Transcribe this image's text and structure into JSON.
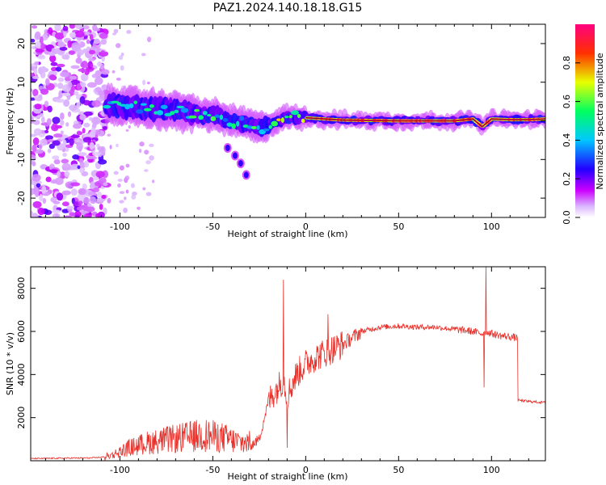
{
  "title": "PAZ1.2024.140.18.18.G15",
  "chart_data": [
    {
      "type": "heatmap",
      "xlabel": "Height of straight line (km)",
      "ylabel": "Frequency (Hz)",
      "xlim": [
        -148,
        129
      ],
      "ylim": [
        -25,
        25
      ],
      "xticks": [
        -100,
        -50,
        0,
        50,
        100
      ],
      "yticks": [
        -20,
        -10,
        0,
        10,
        20
      ],
      "colorbar": {
        "label": "Normalized spectral amplitude",
        "range": [
          0.0,
          1.0
        ],
        "ticks": [
          "0.0",
          "0.2",
          "0.4",
          "0.6",
          "0.8"
        ],
        "colormap": [
          "#ffffff",
          "#cc00ff",
          "#2200ff",
          "#00c8ff",
          "#00ff60",
          "#e8ff00",
          "#ff3000",
          "#ff0080"
        ]
      },
      "ridge": {
        "x": [
          -107,
          -100,
          -90,
          -80,
          -70,
          -60,
          -50,
          -40,
          -30,
          -25,
          -20,
          -15,
          -10,
          0,
          20,
          50,
          80,
          90,
          95,
          100,
          110,
          120,
          129
        ],
        "y": [
          4,
          4,
          3.5,
          3,
          2.5,
          2,
          1.5,
          0,
          -1,
          -2,
          -1,
          0,
          1,
          0.8,
          0.2,
          0,
          0,
          0.5,
          -1.5,
          0.5,
          0.3,
          0.3,
          0.5
        ]
      },
      "branch": {
        "x": [
          -42,
          -38,
          -35,
          -32
        ],
        "y": [
          -7,
          -9,
          -11,
          -14
        ]
      },
      "noise_region": [
        -148,
        -107
      ]
    },
    {
      "type": "line",
      "xlabel": "Height of straight line (km)",
      "ylabel": "SNR (10 * v/v)",
      "xlim": [
        -148,
        129
      ],
      "ylim": [
        0,
        9000
      ],
      "xticks": [
        -100,
        -50,
        0,
        50,
        100
      ],
      "yticks": [
        2000,
        4000,
        6000,
        8000
      ],
      "color": "#e8312a",
      "series": [
        {
          "x": [
            -148,
            -130,
            -115,
            -105,
            -95,
            -85,
            -75,
            -65,
            -55,
            -45,
            -35,
            -30,
            -25,
            -20,
            -15,
            -12,
            -10,
            -5,
            0,
            5,
            10,
            15,
            20,
            25,
            30,
            40,
            50,
            60,
            70,
            80,
            90,
            95,
            97,
            100,
            105,
            110,
            114,
            115,
            120,
            129
          ],
          "y": [
            100,
            120,
            130,
            200,
            500,
            700,
            800,
            900,
            1000,
            900,
            700,
            700,
            1000,
            2800,
            3400,
            3800,
            3000,
            4000,
            4500,
            4800,
            5000,
            5200,
            5400,
            5700,
            6000,
            6200,
            6250,
            6200,
            6200,
            6100,
            6000,
            5900,
            6000,
            5900,
            5800,
            5750,
            5700,
            2800,
            2750,
            2700
          ]
        }
      ],
      "spikes": [
        {
          "x": -12,
          "y": 8400
        },
        {
          "x": -10,
          "y": 600
        },
        {
          "x": 12,
          "y": 6800
        },
        {
          "x": 96,
          "y": 3400
        },
        {
          "x": 97,
          "y": 9000
        }
      ]
    }
  ]
}
